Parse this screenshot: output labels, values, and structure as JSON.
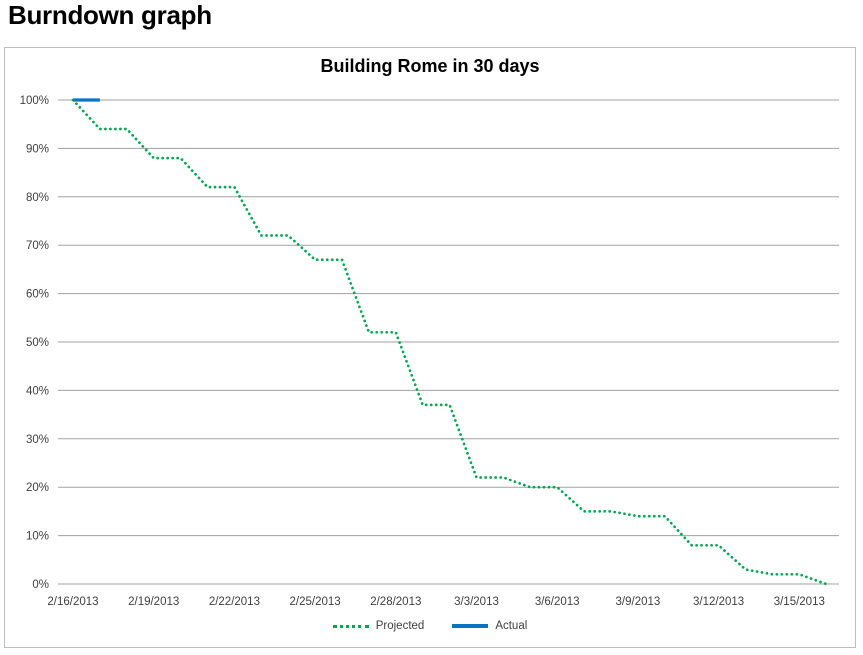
{
  "page": {
    "title": "Burndown graph"
  },
  "chart": {
    "title": "Building Rome in 30 days",
    "legend": [
      {
        "label": "Projected",
        "style": "dotted",
        "color": "#00a651"
      },
      {
        "label": "Actual",
        "style": "solid",
        "color": "#0a74c4"
      }
    ]
  },
  "chart_data": {
    "type": "line",
    "title": "Building Rome in 30 days",
    "x": [
      "2/16/2013",
      "2/17/2013",
      "2/18/2013",
      "2/19/2013",
      "2/20/2013",
      "2/21/2013",
      "2/22/2013",
      "2/23/2013",
      "2/24/2013",
      "2/25/2013",
      "2/26/2013",
      "2/27/2013",
      "2/28/2013",
      "3/1/2013",
      "3/2/2013",
      "3/3/2013",
      "3/4/2013",
      "3/5/2013",
      "3/6/2013",
      "3/7/2013",
      "3/8/2013",
      "3/9/2013",
      "3/10/2013",
      "3/11/2013",
      "3/12/2013",
      "3/13/2013",
      "3/14/2013",
      "3/15/2013",
      "3/16/2013"
    ],
    "series": [
      {
        "name": "Projected",
        "style": "dotted",
        "color": "#00a651",
        "values": [
          100,
          94,
          94,
          88,
          88,
          82,
          82,
          72,
          72,
          67,
          67,
          52,
          52,
          37,
          37,
          22,
          22,
          20,
          20,
          15,
          15,
          14,
          14,
          8,
          8,
          3,
          2,
          2,
          0
        ]
      },
      {
        "name": "Actual",
        "style": "solid",
        "color": "#0a74c4",
        "values": [
          100,
          100
        ]
      }
    ],
    "xlabel": "",
    "ylabel": "",
    "ylim": [
      0,
      100
    ],
    "y_tick_labels": [
      "0%",
      "10%",
      "20%",
      "30%",
      "40%",
      "50%",
      "60%",
      "70%",
      "80%",
      "90%",
      "100%"
    ],
    "x_tick_positions": [
      0,
      3,
      6,
      9,
      12,
      15,
      18,
      21,
      24,
      27
    ],
    "x_tick_labels": [
      "2/16/2013",
      "2/19/2013",
      "2/22/2013",
      "2/25/2013",
      "2/28/2013",
      "3/3/2013",
      "3/6/2013",
      "3/9/2013",
      "3/12/2013",
      "3/15/2013"
    ],
    "grid": "horizontal",
    "grid_color": "#a1a1a1",
    "tick_label_color": "#404040",
    "legend_position": "bottom"
  }
}
